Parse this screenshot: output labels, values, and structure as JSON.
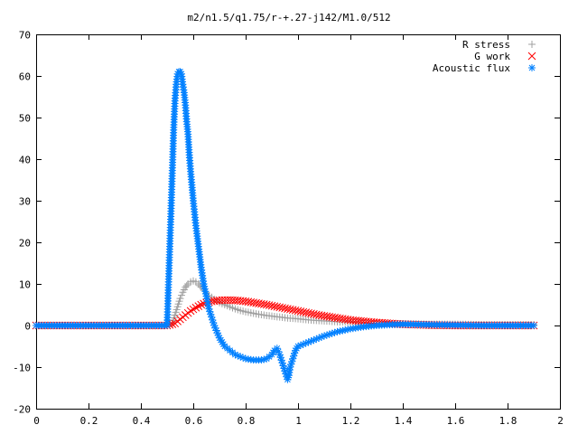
{
  "chart_data": {
    "type": "scatter",
    "title": "m2/n1.5/q1.75/r-+.27-j142/M1.0/512",
    "xlabel": "",
    "ylabel": "",
    "xlim": [
      0,
      2
    ],
    "ylim": [
      -20,
      70
    ],
    "xticks": [
      0,
      0.2,
      0.4,
      0.6,
      0.8,
      1,
      1.2,
      1.4,
      1.6,
      1.8,
      2
    ],
    "xtick_labels": [
      "0",
      "0.2",
      "0.4",
      "0.6",
      "0.8",
      "1",
      "1.2",
      "1.4",
      "1.6",
      "1.8",
      "2"
    ],
    "yticks": [
      -20,
      -10,
      0,
      10,
      20,
      30,
      40,
      50,
      60,
      70
    ],
    "ytick_labels": [
      "-20",
      "-10",
      "0",
      "10",
      "20",
      "30",
      "40",
      "50",
      "60",
      "70"
    ],
    "grid": false,
    "legend_position": "top-right",
    "series": [
      {
        "name": "R stress",
        "marker": "plus",
        "color": "#a0a0a0",
        "x": [
          0.0,
          0.1,
          0.2,
          0.3,
          0.4,
          0.5,
          0.52,
          0.53,
          0.54,
          0.55,
          0.56,
          0.57,
          0.58,
          0.59,
          0.6,
          0.61,
          0.62,
          0.63,
          0.64,
          0.65,
          0.66,
          0.67,
          0.68,
          0.7,
          0.72,
          0.74,
          0.76,
          0.78,
          0.8,
          0.84,
          0.88,
          0.92,
          0.96,
          1.0,
          1.05,
          1.1,
          1.15,
          1.2,
          1.25,
          1.3,
          1.35,
          1.4,
          1.5,
          1.6,
          1.7,
          1.8,
          1.9
        ],
        "y": [
          0,
          0,
          0,
          0,
          0,
          0,
          0.5,
          2.5,
          4.5,
          6.5,
          8.0,
          9.2,
          10.0,
          10.5,
          10.7,
          10.5,
          10.0,
          9.2,
          8.5,
          7.8,
          7.2,
          6.8,
          6.3,
          5.5,
          5.0,
          4.5,
          4.0,
          3.6,
          3.3,
          2.8,
          2.4,
          2.1,
          1.8,
          1.6,
          1.3,
          1.1,
          0.9,
          0.8,
          0.6,
          0.5,
          0.4,
          0.4,
          0.3,
          0.3,
          0.2,
          0.2,
          0.2
        ]
      },
      {
        "name": "G work",
        "marker": "cross",
        "color": "#ff0000",
        "x": [
          0.0,
          0.1,
          0.2,
          0.3,
          0.4,
          0.5,
          0.53,
          0.55,
          0.57,
          0.59,
          0.61,
          0.63,
          0.65,
          0.67,
          0.69,
          0.71,
          0.74,
          0.77,
          0.8,
          0.84,
          0.88,
          0.92,
          0.96,
          1.0,
          1.04,
          1.08,
          1.12,
          1.16,
          1.2,
          1.25,
          1.3,
          1.35,
          1.4,
          1.45,
          1.5,
          1.6,
          1.7,
          1.8,
          1.9
        ],
        "y": [
          0,
          0,
          0,
          0,
          0,
          0,
          0.5,
          1.5,
          2.5,
          3.5,
          4.3,
          5.0,
          5.5,
          5.8,
          6.0,
          6.1,
          6.1,
          6.0,
          5.8,
          5.4,
          5.0,
          4.5,
          4.0,
          3.5,
          3.0,
          2.5,
          2.1,
          1.7,
          1.3,
          1.0,
          0.7,
          0.5,
          0.3,
          0.2,
          0.1,
          0.0,
          0.0,
          0.0,
          0.0
        ]
      },
      {
        "name": "Acoustic flux",
        "marker": "star",
        "color": "#0080ff",
        "x": [
          0.0,
          0.1,
          0.2,
          0.3,
          0.4,
          0.5,
          0.515,
          0.525,
          0.53,
          0.535,
          0.54,
          0.545,
          0.55,
          0.555,
          0.56,
          0.565,
          0.57,
          0.575,
          0.58,
          0.585,
          0.59,
          0.6,
          0.61,
          0.62,
          0.63,
          0.64,
          0.65,
          0.66,
          0.67,
          0.68,
          0.7,
          0.72,
          0.74,
          0.76,
          0.78,
          0.8,
          0.83,
          0.86,
          0.88,
          0.9,
          0.91,
          0.92,
          0.93,
          0.94,
          0.95,
          0.96,
          0.965,
          0.97,
          0.98,
          0.99,
          1.0,
          1.02,
          1.04,
          1.06,
          1.08,
          1.1,
          1.15,
          1.2,
          1.25,
          1.3,
          1.35,
          1.4,
          1.5,
          1.6,
          1.7,
          1.8,
          1.9
        ],
        "y": [
          0,
          0,
          0,
          0,
          0,
          0,
          27.5,
          47,
          54,
          58,
          60.5,
          61,
          61,
          60.5,
          58,
          56,
          53,
          49,
          46,
          41,
          37,
          30,
          24,
          19,
          14,
          10,
          7,
          4,
          2,
          0,
          -3,
          -5,
          -6,
          -7,
          -7.5,
          -8,
          -8.3,
          -8.3,
          -8,
          -7,
          -6,
          -5.5,
          -7,
          -9,
          -11,
          -13,
          -12,
          -10,
          -8,
          -6,
          -5,
          -4.5,
          -4,
          -3.5,
          -3,
          -2.5,
          -1.5,
          -0.8,
          -0.3,
          0,
          0.2,
          0.3,
          0.2,
          0.1,
          0.0,
          0.0,
          0.0
        ]
      }
    ]
  }
}
